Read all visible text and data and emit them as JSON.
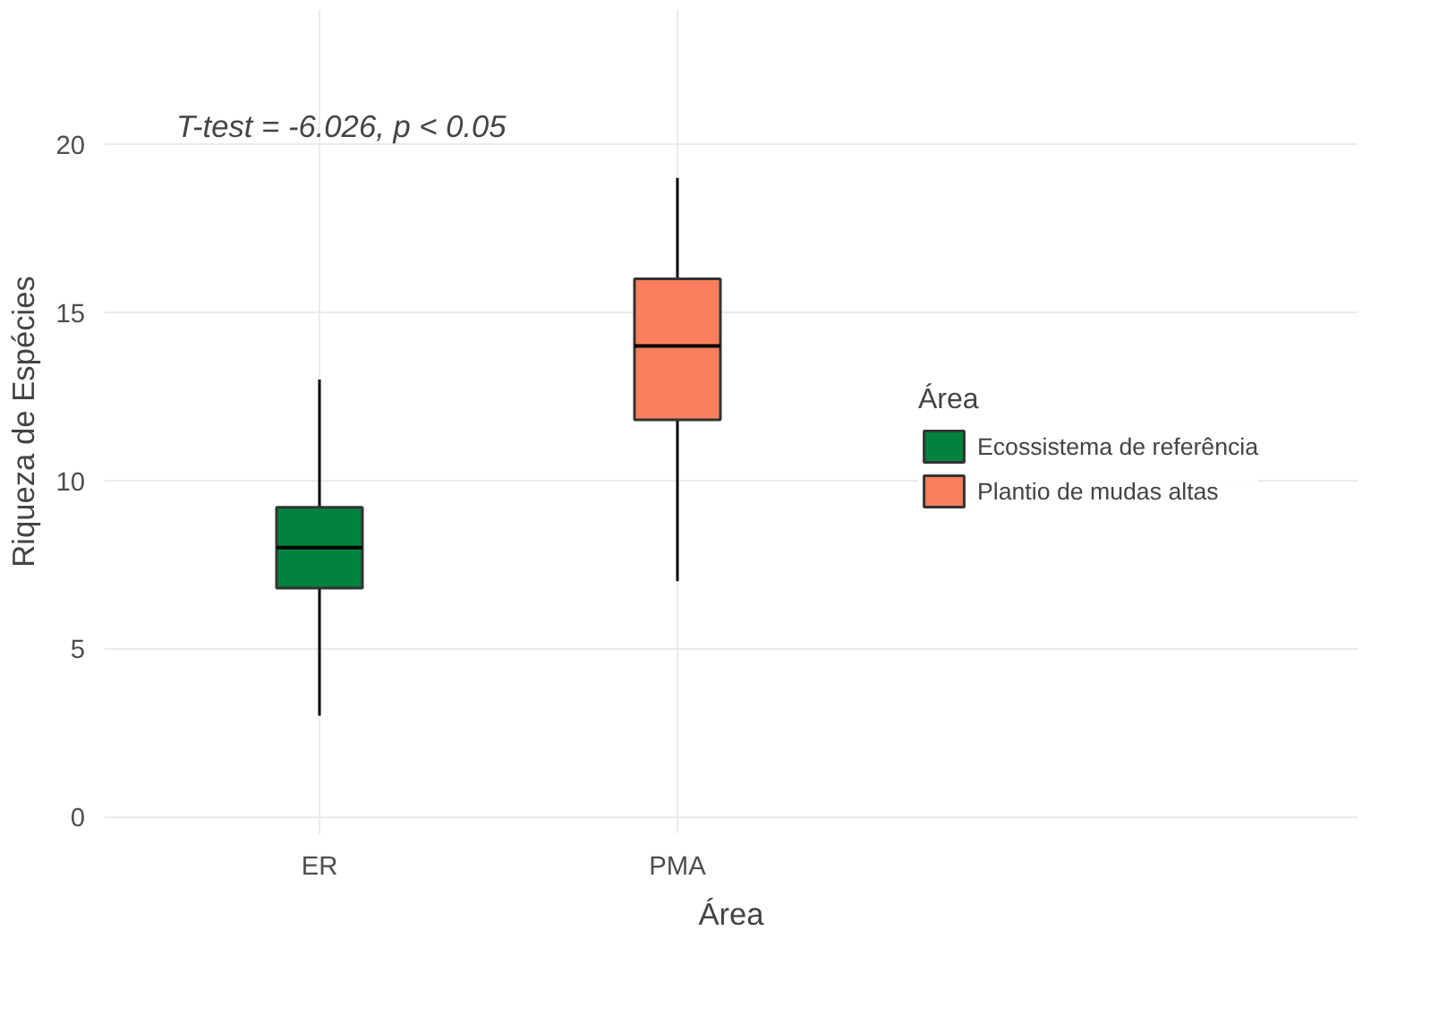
{
  "chart_data": {
    "type": "box",
    "xlabel": "Área",
    "ylabel": "Riqueza de Espécies",
    "legend_title": "Área",
    "categories": [
      "ER",
      "PMA"
    ],
    "series": [
      {
        "name": "Ecossistema de referência",
        "color": "#00843d",
        "boxes": [
          {
            "low": 3,
            "q1": 6.8,
            "median": 8,
            "q3": 9.2,
            "high": 13
          },
          null
        ]
      },
      {
        "name": "Plantio de mudas altas",
        "color": "#fa7f5e",
        "boxes": [
          null,
          {
            "low": 7,
            "q1": 11.8,
            "median": 14,
            "q3": 16,
            "high": 19
          }
        ]
      }
    ],
    "ylim": [
      -0.5,
      24
    ],
    "yticks": [
      0,
      5,
      10,
      15,
      20
    ],
    "grid": true,
    "legend": "right",
    "annotations": [
      "T-test = -6.026, p < 0.05"
    ]
  }
}
